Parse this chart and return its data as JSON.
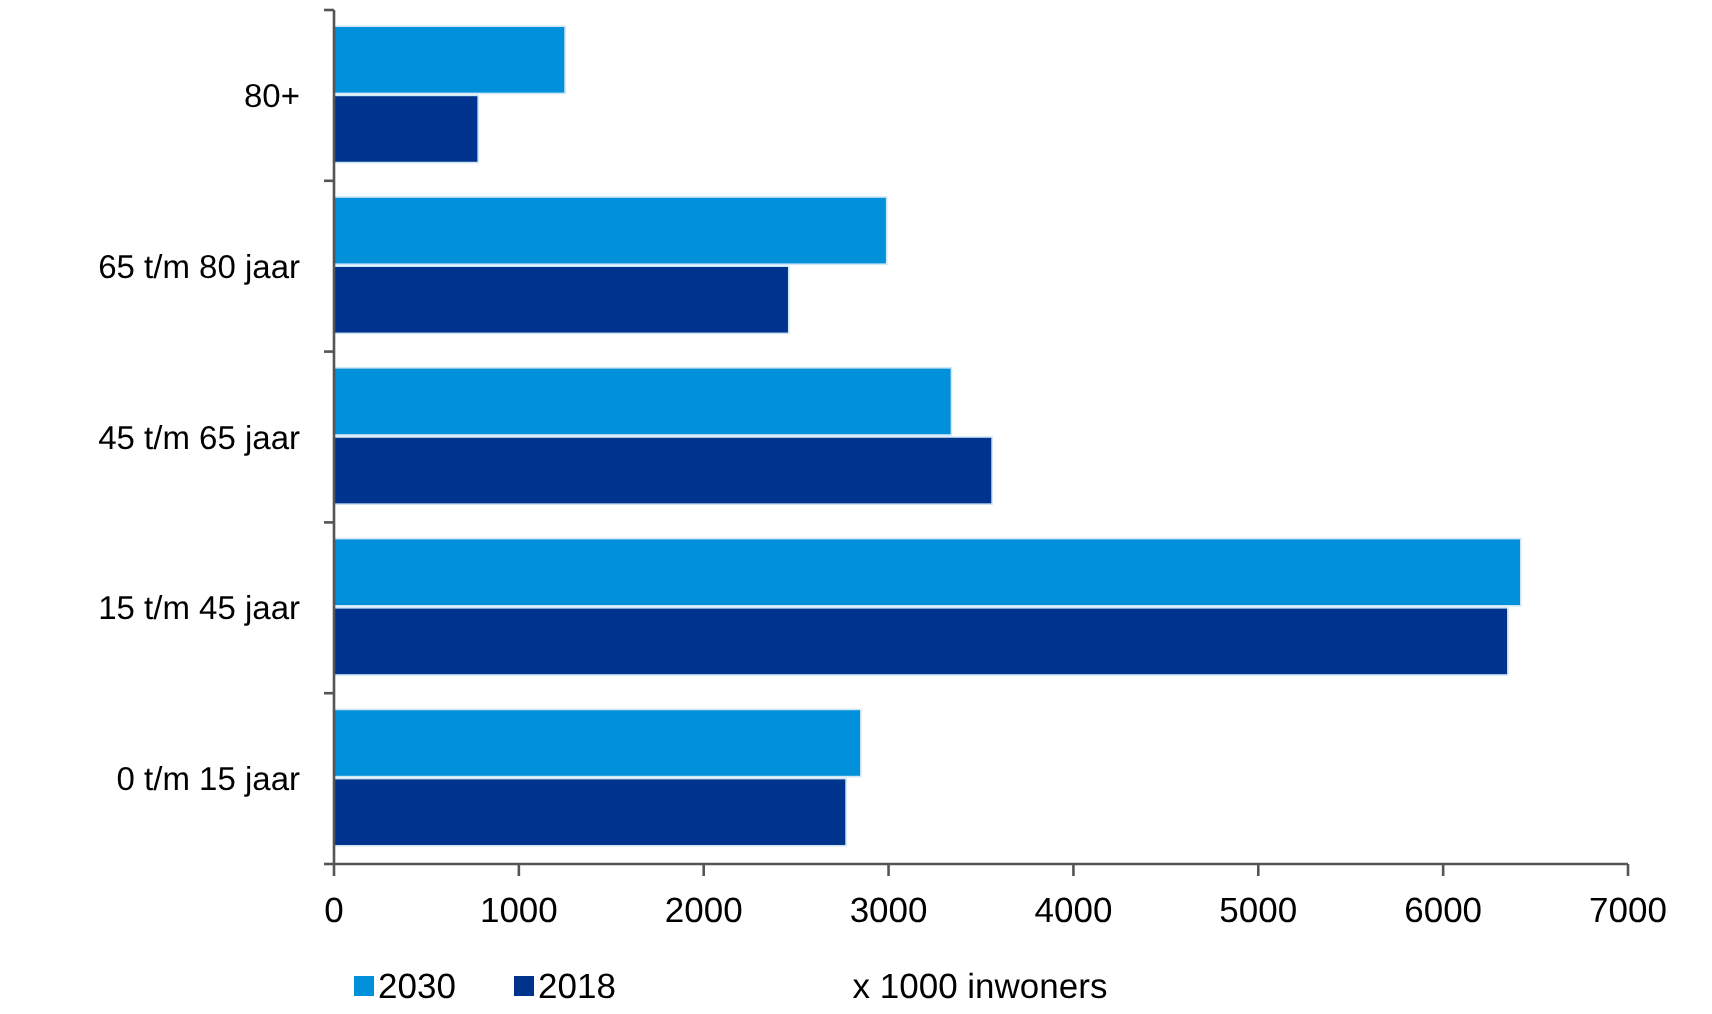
{
  "chart_data": {
    "type": "bar",
    "orientation": "horizontal",
    "categories": [
      "80+",
      "65 t/m 80 jaar",
      "45 t/m 65 jaar",
      "15 t/m 45 jaar",
      "0 t/m 15 jaar"
    ],
    "series": [
      {
        "name": "2030",
        "color": "#0091da",
        "values": [
          1250,
          2990,
          3340,
          6420,
          2850
        ]
      },
      {
        "name": "2018",
        "color": "#00338d",
        "values": [
          780,
          2460,
          3560,
          6350,
          2770
        ]
      }
    ],
    "xlabel": "x 1000 inwoners",
    "xlim": [
      0,
      7000
    ],
    "xticks": [
      0,
      1000,
      2000,
      3000,
      4000,
      5000,
      6000,
      7000
    ],
    "legend": "bottom left"
  }
}
